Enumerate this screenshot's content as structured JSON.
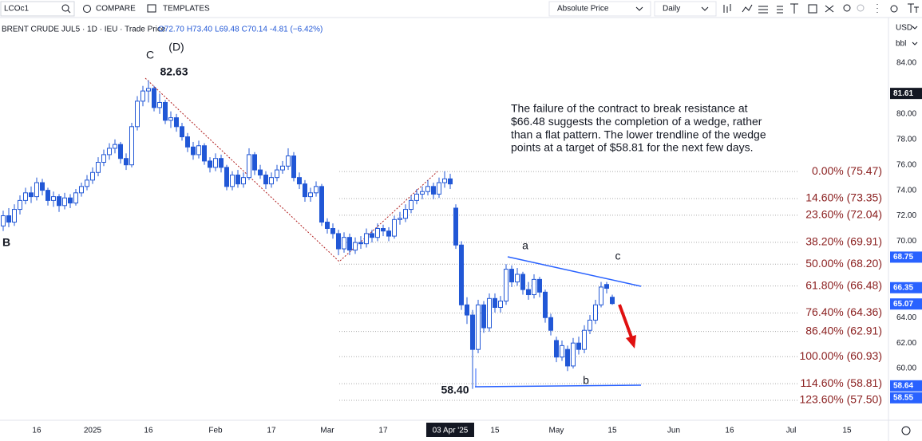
{
  "toolbar": {
    "symbol": "LCOc1",
    "compare": "COMPARE",
    "templates": "TEMPLATES",
    "price_mode": "Absolute Price",
    "interval": "Daily"
  },
  "chart_data": {
    "type": "candlestick",
    "symbol_info": "BRENT CRUDE JUL5 · 1D · IEU · Trade Price",
    "ohlc_legend": [
      "O72.70",
      "H73.40",
      "L69.48",
      "C70.14",
      "-4.81 (−6.42%)"
    ],
    "currency": "USD",
    "unit": "bbl",
    "open": [
      71.2,
      72.0,
      71.5,
      72.5,
      73.2,
      73.8,
      73.5,
      74.6,
      74.0,
      73.2,
      73.5,
      72.8,
      73.4,
      73.0,
      73.8,
      74.3,
      74.8,
      75.4,
      76.2,
      76.8,
      77.3,
      77.6,
      76.5,
      76.0,
      79.0,
      81.0,
      81.8,
      82.0,
      80.5,
      80.9,
      79.5,
      79.7,
      79.0,
      78.2,
      77.4,
      76.8,
      77.5,
      76.3,
      75.8,
      76.5,
      75.8,
      74.3,
      75.2,
      74.5,
      75.0,
      76.8,
      75.6,
      75.2,
      74.5,
      75.0,
      75.6,
      75.9,
      76.7,
      75.0,
      74.5,
      73.5,
      73.8,
      74.3,
      71.5,
      71.0,
      70.6,
      69.4,
      70.3,
      69.3,
      69.9,
      69.8,
      70.6,
      70.3,
      71.0,
      70.8,
      70.4,
      71.7,
      71.8,
      72.5,
      73.2,
      73.7,
      73.9,
      74.3,
      73.7,
      74.6,
      74.9,
      72.6,
      69.7,
      65.0,
      64.2,
      61.5,
      65.0,
      63.2,
      65.5,
      64.8,
      65.3,
      67.8,
      66.8,
      67.4,
      66.2,
      65.8,
      67.0,
      66.0,
      64.0,
      62.2,
      60.9,
      61.5,
      60.2,
      62.0,
      61.5,
      63.0,
      63.8,
      65.0,
      66.6,
      65.6
    ],
    "high": [
      72.4,
      72.6,
      72.9,
      73.6,
      74.2,
      74.3,
      75.0,
      74.9,
      74.2,
      73.9,
      73.7,
      73.8,
      73.7,
      74.1,
      74.6,
      75.2,
      75.8,
      76.6,
      77.2,
      77.7,
      78.0,
      77.8,
      76.9,
      79.3,
      81.4,
      82.2,
      82.63,
      82.2,
      81.6,
      81.1,
      80.2,
      80.0,
      79.3,
      78.5,
      77.8,
      77.9,
      77.7,
      76.6,
      76.9,
      76.8,
      76.0,
      75.5,
      75.6,
      75.4,
      77.3,
      77.0,
      76.0,
      75.5,
      75.4,
      76.0,
      76.3,
      77.3,
      77.0,
      75.4,
      74.8,
      74.2,
      74.7,
      74.5,
      71.8,
      71.4,
      70.9,
      70.7,
      70.6,
      70.3,
      70.4,
      71.0,
      70.9,
      71.4,
      71.3,
      71.1,
      72.0,
      72.3,
      72.9,
      73.6,
      74.1,
      74.3,
      74.8,
      74.6,
      75.0,
      75.5,
      75.3,
      72.9,
      70.0,
      65.6,
      64.6,
      65.4,
      65.3,
      65.9,
      65.9,
      65.7,
      68.2,
      68.1,
      67.9,
      67.6,
      66.8,
      67.4,
      67.2,
      66.2,
      64.3,
      62.5,
      62.2,
      61.8,
      62.4,
      62.5,
      63.4,
      64.2,
      65.4,
      66.8,
      66.8,
      65.8
    ],
    "low": [
      70.8,
      71.1,
      71.2,
      72.1,
      72.9,
      73.0,
      73.2,
      73.6,
      72.8,
      72.7,
      72.3,
      72.5,
      72.6,
      72.8,
      73.5,
      74.0,
      74.5,
      75.1,
      75.9,
      76.4,
      76.9,
      76.1,
      75.6,
      75.8,
      78.7,
      80.6,
      80.9,
      80.2,
      80.0,
      79.2,
      78.9,
      78.6,
      77.9,
      77.0,
      76.4,
      76.5,
      76.0,
      75.4,
      75.5,
      75.4,
      74.0,
      74.0,
      74.2,
      74.2,
      74.8,
      75.2,
      74.9,
      74.1,
      74.2,
      74.7,
      75.3,
      75.6,
      74.7,
      74.1,
      73.1,
      73.1,
      73.5,
      71.2,
      70.6,
      70.2,
      68.9,
      69.1,
      68.9,
      69.0,
      69.4,
      69.5,
      69.9,
      70.0,
      70.4,
      70.0,
      70.2,
      71.3,
      71.5,
      72.2,
      72.9,
      73.3,
      73.6,
      73.3,
      73.4,
      74.2,
      74.1,
      69.4,
      64.6,
      63.5,
      58.4,
      61.2,
      62.8,
      62.9,
      64.4,
      64.4,
      65.0,
      66.4,
      66.5,
      65.8,
      65.4,
      65.5,
      65.6,
      63.6,
      62.6,
      60.5,
      60.6,
      59.8,
      60.0,
      61.1,
      61.2,
      62.7,
      63.5,
      64.8,
      65.9,
      65.0
    ],
    "close": [
      72.0,
      71.5,
      72.5,
      73.2,
      73.8,
      73.5,
      74.6,
      74.0,
      73.2,
      73.5,
      72.8,
      73.4,
      73.0,
      73.8,
      74.3,
      74.8,
      75.4,
      76.2,
      76.8,
      77.3,
      77.6,
      76.5,
      76.0,
      79.0,
      81.0,
      81.8,
      82.0,
      80.5,
      80.9,
      79.5,
      79.7,
      79.0,
      78.2,
      77.4,
      76.8,
      77.5,
      76.3,
      75.8,
      76.5,
      75.8,
      74.3,
      75.2,
      74.5,
      75.0,
      76.8,
      75.6,
      75.2,
      74.5,
      75.0,
      75.6,
      75.9,
      76.7,
      75.0,
      74.5,
      73.5,
      73.8,
      74.3,
      71.5,
      71.0,
      70.6,
      69.4,
      70.3,
      69.3,
      69.9,
      69.8,
      70.6,
      70.3,
      71.0,
      70.8,
      70.4,
      71.7,
      71.8,
      72.5,
      73.2,
      73.7,
      73.9,
      74.3,
      73.7,
      74.6,
      74.9,
      74.5,
      69.7,
      65.0,
      64.2,
      61.5,
      65.0,
      63.2,
      65.5,
      64.8,
      65.3,
      67.8,
      66.8,
      67.4,
      66.2,
      65.8,
      67.0,
      66.0,
      64.0,
      63.0,
      60.9,
      61.8,
      60.2,
      62.0,
      61.5,
      63.0,
      63.8,
      65.0,
      66.4,
      66.3,
      65.1
    ],
    "color": "#2157d6",
    "xlim": [
      -0.57,
      158.43
    ],
    "ylim": [
      56.06,
      87.57
    ],
    "yticks": [
      {
        "value": 84,
        "label": "84.00"
      },
      {
        "value": 80,
        "label": "80.00"
      },
      {
        "value": 78,
        "label": "78.00"
      },
      {
        "value": 76,
        "label": "76.00"
      },
      {
        "value": 74,
        "label": "74.00"
      },
      {
        "value": 72,
        "label": "72.00"
      },
      {
        "value": 70,
        "label": "70.00"
      },
      {
        "value": 64,
        "label": "64.00"
      },
      {
        "value": 62,
        "label": "62.00"
      },
      {
        "value": 60,
        "label": "60.00"
      }
    ],
    "xticks": [
      {
        "value": 6,
        "label": "16"
      },
      {
        "value": 16,
        "label": "2025"
      },
      {
        "value": 26,
        "label": "16"
      },
      {
        "value": 38,
        "label": "Feb"
      },
      {
        "value": 48,
        "label": "17"
      },
      {
        "value": 58,
        "label": "Mar"
      },
      {
        "value": 68,
        "label": "17"
      },
      {
        "value": 88,
        "label": "15"
      },
      {
        "value": 99,
        "label": "May"
      },
      {
        "value": 109,
        "label": "15"
      },
      {
        "value": 120,
        "label": "Jun"
      },
      {
        "value": 130,
        "label": "16"
      },
      {
        "value": 141,
        "label": "Jul"
      },
      {
        "value": 151,
        "label": "15"
      }
    ],
    "crosshair_date": {
      "value": 80,
      "label": "03 Apr '25"
    },
    "price_labels": [
      {
        "value": 81.61,
        "color": "#131722"
      },
      {
        "value": 68.75,
        "color": "#2962ff"
      },
      {
        "value": 66.35,
        "color": "#2962ff"
      },
      {
        "value": 65.07,
        "color": "#2962ff"
      },
      {
        "value": 58.64,
        "color": "#2962ff"
      },
      {
        "value": 58.55,
        "color": "#2962ff"
      }
    ],
    "fib_color": "#8b2020",
    "fib_levels": [
      {
        "value": 75.47,
        "label": "0.00% (75.47)"
      },
      {
        "value": 73.35,
        "label": "14.60% (73.35)"
      },
      {
        "value": 72.04,
        "label": "23.60% (72.04)"
      },
      {
        "value": 69.91,
        "label": "38.20% (69.91)"
      },
      {
        "value": 68.2,
        "label": "50.00% (68.20)"
      },
      {
        "value": 66.48,
        "label": "61.80% (66.48)"
      },
      {
        "value": 64.36,
        "label": "76.40% (64.36)"
      },
      {
        "value": 62.91,
        "label": "86.40% (62.91)"
      },
      {
        "value": 60.93,
        "label": "100.00% (60.93)"
      },
      {
        "value": 58.81,
        "label": "114.60% (58.81)"
      },
      {
        "value": 57.5,
        "label": "123.60% (57.50)"
      }
    ],
    "annotations": [
      "C",
      "(D)",
      "82.63",
      "B",
      "a",
      "c",
      "b",
      "58.40"
    ],
    "note_lines": [
      "The failure of the contract to break resistance at",
      "$66.48 suggests the completion of a wedge, rather",
      "than a flat pattern.  The lower trendline of the wedge",
      "points at a target of $58.81 for the next few days."
    ]
  }
}
